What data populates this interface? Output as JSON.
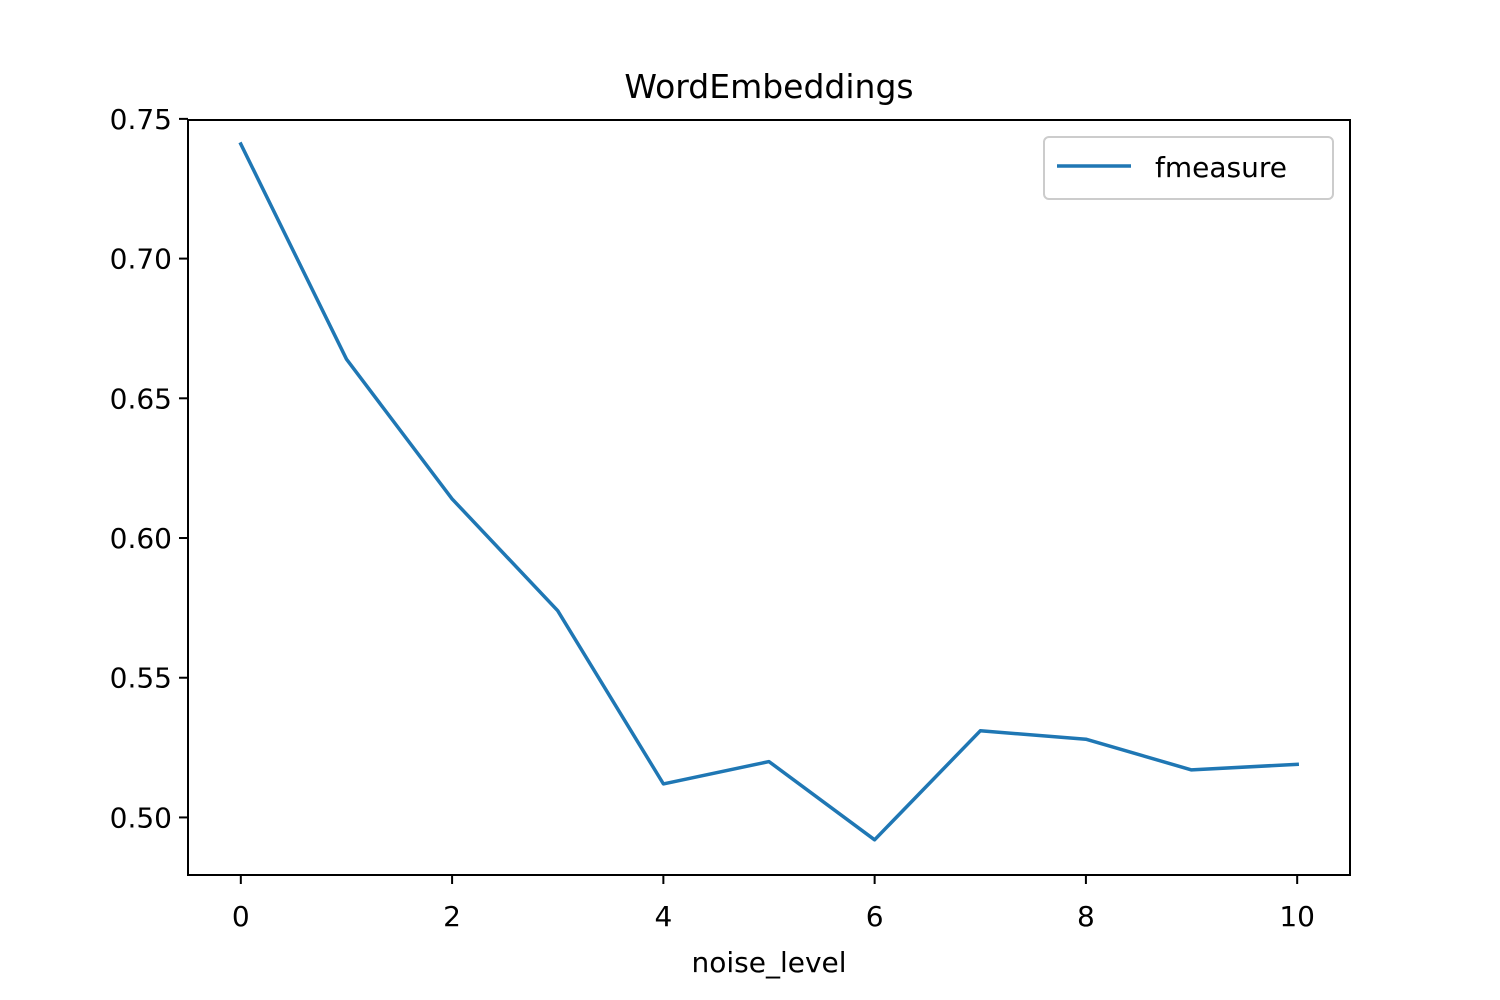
{
  "chart_data": {
    "type": "line",
    "title": "WordEmbeddings",
    "xlabel": "noise_level",
    "ylabel": "",
    "x": [
      0,
      1,
      2,
      3,
      4,
      5,
      6,
      7,
      8,
      9,
      10
    ],
    "series": [
      {
        "name": "fmeasure",
        "color": "#1f77b4",
        "values": [
          0.741,
          0.664,
          0.614,
          0.574,
          0.512,
          0.52,
          0.492,
          0.531,
          0.528,
          0.517,
          0.519
        ]
      }
    ],
    "xlim": [
      -0.5,
      10.5
    ],
    "ylim": [
      0.4794,
      0.7496
    ],
    "xticks": [
      0,
      2,
      4,
      6,
      8,
      10
    ],
    "xtick_labels": [
      "0",
      "2",
      "4",
      "6",
      "8",
      "10"
    ],
    "yticks": [
      0.5,
      0.55,
      0.6,
      0.65,
      0.7,
      0.75
    ],
    "ytick_labels": [
      "0.50",
      "0.55",
      "0.60",
      "0.65",
      "0.70",
      "0.75"
    ],
    "grid": false,
    "legend_position": "top-right"
  }
}
